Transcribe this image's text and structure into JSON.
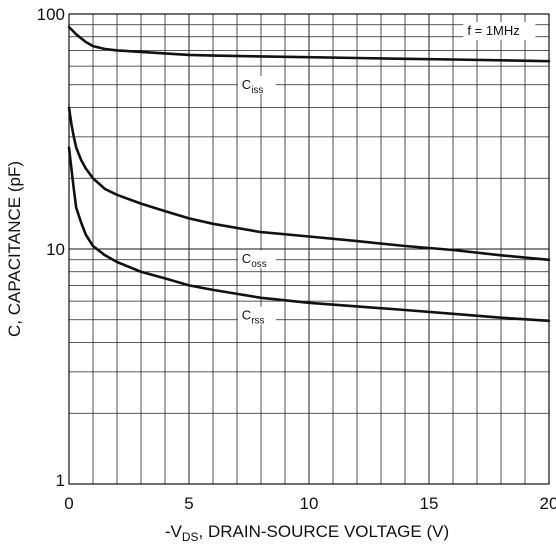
{
  "chart_data": {
    "type": "line",
    "xlabel": {
      "prefix": "-V",
      "sub": "DS",
      "suffix": ", DRAIN-SOURCE VOLTAGE (V)"
    },
    "ylabel": "C, CAPACITANCE (pF)",
    "x_ticks": [
      "0",
      "5",
      "10",
      "15",
      "20"
    ],
    "y_ticks": [
      "1",
      "10",
      "100"
    ],
    "xlim": [
      0,
      20
    ],
    "ylim": [
      1,
      100
    ],
    "y_scale": "log",
    "grid": true,
    "annotation": "f = 1MHz",
    "series": [
      {
        "name": {
          "main": "C",
          "sub": "iss"
        },
        "x": [
          0,
          0.3,
          0.7,
          1,
          1.5,
          2,
          3,
          4,
          5,
          6,
          8,
          10,
          12,
          14,
          16,
          18,
          20
        ],
        "y": [
          88,
          82,
          76,
          73,
          71,
          70,
          69,
          68,
          67,
          66.5,
          66,
          65.5,
          65,
          64.5,
          64,
          63.5,
          63
        ]
      },
      {
        "name": {
          "main": "C",
          "sub": "oss"
        },
        "x": [
          0,
          0.1,
          0.2,
          0.3,
          0.5,
          0.7,
          1,
          1.5,
          2,
          3,
          4,
          5,
          6,
          8,
          10,
          12,
          14,
          16,
          18,
          20
        ],
        "y": [
          40,
          34,
          30,
          27,
          24,
          22,
          20,
          18,
          17,
          15.6,
          14.5,
          13.5,
          12.8,
          11.8,
          11.3,
          10.8,
          10.3,
          9.9,
          9.4,
          9.0
        ]
      },
      {
        "name": {
          "main": "C",
          "sub": "rss"
        },
        "x": [
          0,
          0.1,
          0.2,
          0.3,
          0.5,
          0.7,
          1,
          1.5,
          2,
          3,
          4,
          5,
          6,
          8,
          10,
          12,
          14,
          16,
          18,
          20
        ],
        "y": [
          27,
          22,
          18,
          15,
          13,
          11.5,
          10.3,
          9.4,
          8.8,
          8.0,
          7.5,
          7.0,
          6.7,
          6.2,
          5.9,
          5.7,
          5.5,
          5.3,
          5.1,
          4.95
        ]
      }
    ]
  }
}
